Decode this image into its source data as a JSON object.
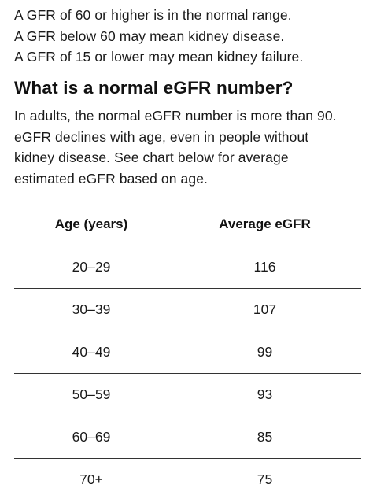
{
  "intro": {
    "lines": [
      "A GFR of 60 or higher is in the normal range.",
      "A GFR below 60 may mean kidney disease.",
      "A GFR of 15 or lower may mean kidney failure."
    ]
  },
  "section": {
    "heading": "What is a normal eGFR number?",
    "paragraph_lines": [
      "In adults, the normal eGFR number is more than 90.",
      "eGFR declines with age, even in people without",
      "kidney disease. See chart below for average",
      "estimated eGFR based on age."
    ]
  },
  "table": {
    "headers": [
      "Age (years)",
      "Average eGFR"
    ],
    "rows": [
      [
        "20–29",
        "116"
      ],
      [
        "30–39",
        "107"
      ],
      [
        "40–49",
        "99"
      ],
      [
        "50–59",
        "93"
      ],
      [
        "60–69",
        "85"
      ],
      [
        "70+",
        "75"
      ]
    ]
  }
}
